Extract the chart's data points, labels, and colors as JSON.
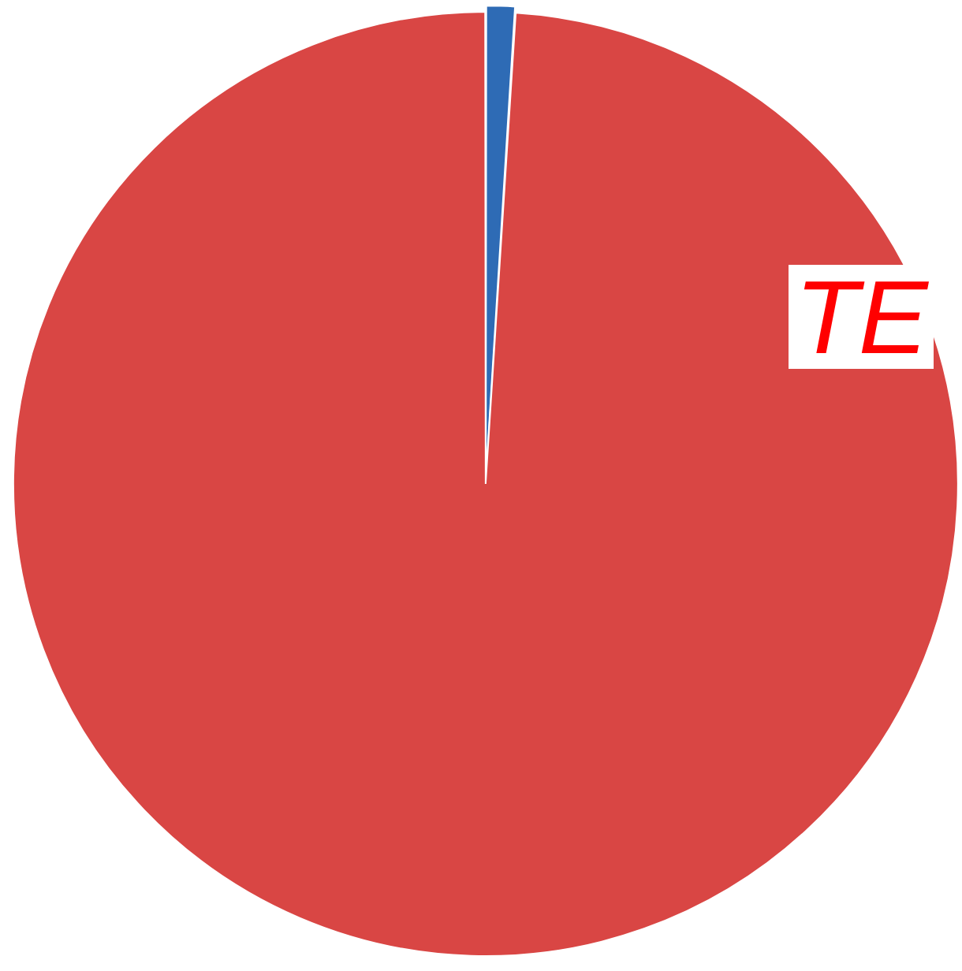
{
  "chart_data": {
    "type": "pie",
    "categories": [
      null,
      null
    ],
    "values": [
      1,
      99
    ],
    "colors": [
      "#2e6bb5",
      "#d94644"
    ],
    "annotations": [
      "TE"
    ],
    "legend": false
  }
}
